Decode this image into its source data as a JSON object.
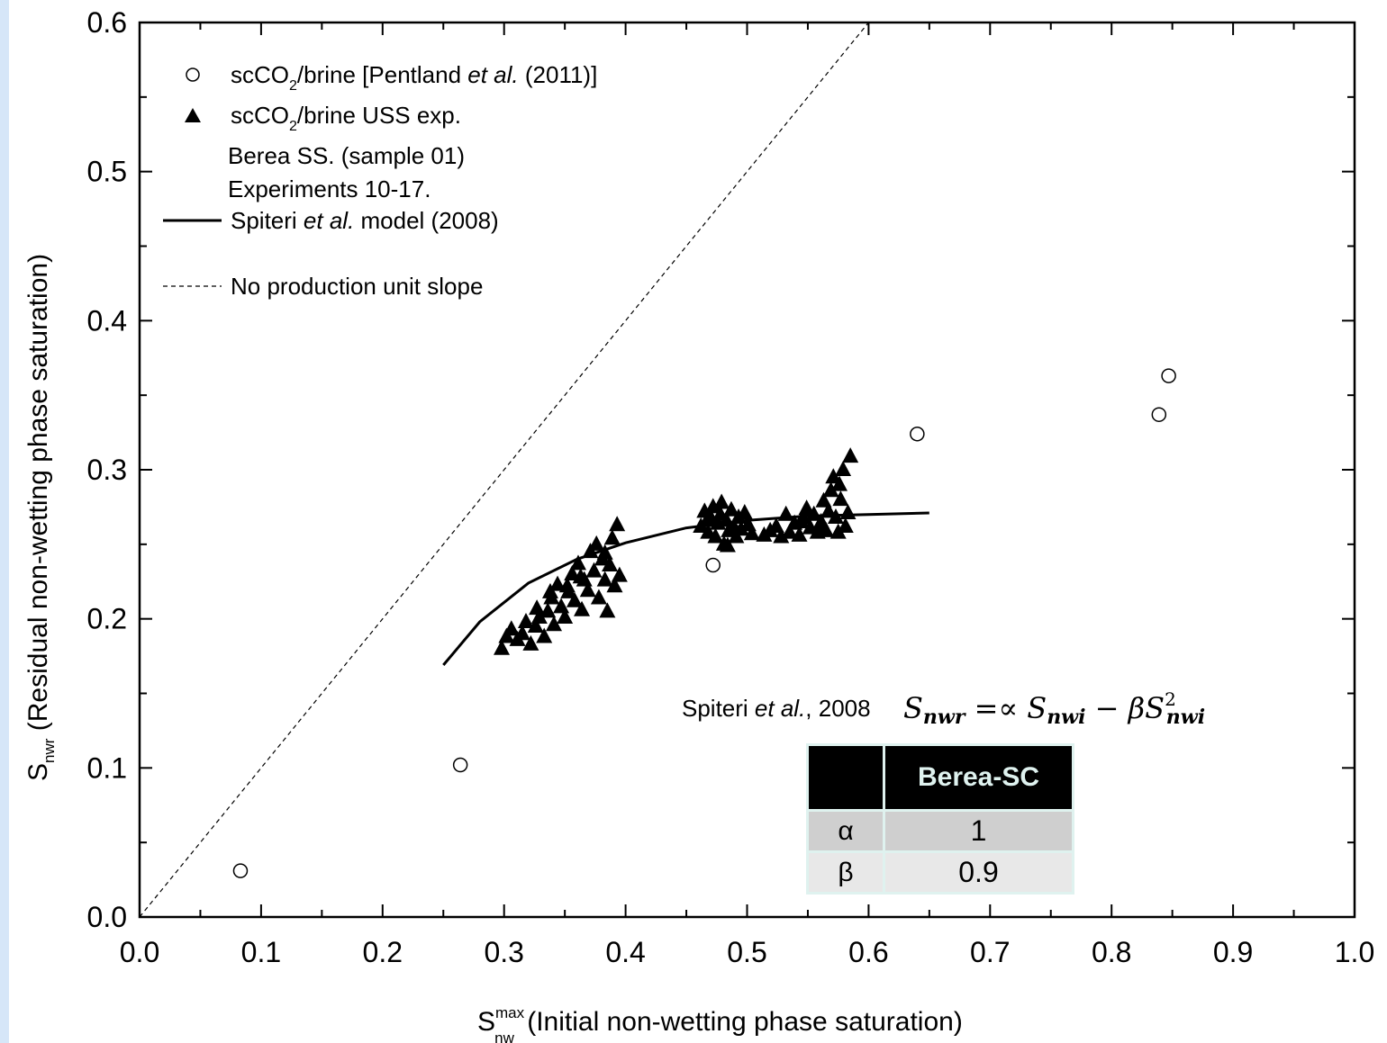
{
  "chart_data": {
    "type": "scatter",
    "xlim": [
      0.0,
      1.0
    ],
    "ylim": [
      0.0,
      0.6
    ],
    "x_ticks": [
      "0.0",
      "0.1",
      "0.2",
      "0.3",
      "0.4",
      "0.5",
      "0.6",
      "0.7",
      "0.8",
      "0.9",
      "1.0"
    ],
    "y_ticks": [
      "0.0",
      "0.1",
      "0.2",
      "0.3",
      "0.4",
      "0.5",
      "0.6"
    ],
    "xlabel": {
      "main": "S",
      "sup": "max",
      "sub": "nw",
      "rest": " (Initial non-wetting phase saturation)"
    },
    "ylabel": {
      "main": "S",
      "sub": "nwr",
      "rest": " (Residual non-wetting phase saturation)"
    },
    "grid": false,
    "legend": {
      "placement": "top-left",
      "pentland": {
        "pre": "scCO",
        "sub": "2",
        "mid": "/brine [Pentland ",
        "italic": "et al.",
        "post": " (2011)]"
      },
      "uss": {
        "pre": "scCO",
        "sub": "2",
        "post": "/brine USS exp."
      },
      "uss_note_1": "Berea SS. (sample 01)",
      "uss_note_2": "Experiments 10-17.",
      "model": {
        "pre": "Spiteri ",
        "italic": "et al.",
        "post": " model (2008)"
      },
      "unit_slope": "No production unit slope"
    },
    "series": [
      {
        "name": "scCO2/brine [Pentland et al. (2011)]",
        "marker": "open-circle",
        "points": [
          [
            0.083,
            0.031
          ],
          [
            0.264,
            0.102
          ],
          [
            0.472,
            0.236
          ],
          [
            0.64,
            0.324
          ],
          [
            0.839,
            0.337
          ],
          [
            0.847,
            0.363
          ]
        ]
      },
      {
        "name": "scCO2/brine USS exp.",
        "marker": "filled-triangle",
        "points": [
          [
            0.298,
            0.18
          ],
          [
            0.302,
            0.188
          ],
          [
            0.306,
            0.193
          ],
          [
            0.311,
            0.186
          ],
          [
            0.315,
            0.19
          ],
          [
            0.318,
            0.198
          ],
          [
            0.322,
            0.183
          ],
          [
            0.326,
            0.195
          ],
          [
            0.329,
            0.201
          ],
          [
            0.333,
            0.188
          ],
          [
            0.336,
            0.205
          ],
          [
            0.339,
            0.214
          ],
          [
            0.341,
            0.196
          ],
          [
            0.344,
            0.223
          ],
          [
            0.347,
            0.208
          ],
          [
            0.35,
            0.201
          ],
          [
            0.353,
            0.218
          ],
          [
            0.356,
            0.23
          ],
          [
            0.358,
            0.212
          ],
          [
            0.361,
            0.237
          ],
          [
            0.364,
            0.206
          ],
          [
            0.366,
            0.226
          ],
          [
            0.369,
            0.219
          ],
          [
            0.371,
            0.245
          ],
          [
            0.374,
            0.232
          ],
          [
            0.376,
            0.25
          ],
          [
            0.378,
            0.214
          ],
          [
            0.381,
            0.24
          ],
          [
            0.383,
            0.226
          ],
          [
            0.385,
            0.205
          ],
          [
            0.387,
            0.236
          ],
          [
            0.389,
            0.254
          ],
          [
            0.391,
            0.222
          ],
          [
            0.393,
            0.263
          ],
          [
            0.395,
            0.229
          ],
          [
            0.383,
            0.244
          ],
          [
            0.352,
            0.222
          ],
          [
            0.338,
            0.218
          ],
          [
            0.327,
            0.207
          ],
          [
            0.363,
            0.228
          ],
          [
            0.462,
            0.262
          ],
          [
            0.465,
            0.272
          ],
          [
            0.468,
            0.258
          ],
          [
            0.47,
            0.268
          ],
          [
            0.472,
            0.275
          ],
          [
            0.474,
            0.255
          ],
          [
            0.476,
            0.264
          ],
          [
            0.478,
            0.27
          ],
          [
            0.479,
            0.278
          ],
          [
            0.481,
            0.25
          ],
          [
            0.483,
            0.266
          ],
          [
            0.485,
            0.259
          ],
          [
            0.487,
            0.273
          ],
          [
            0.489,
            0.262
          ],
          [
            0.491,
            0.255
          ],
          [
            0.493,
            0.268
          ],
          [
            0.495,
            0.26
          ],
          [
            0.498,
            0.271
          ],
          [
            0.501,
            0.263
          ],
          [
            0.504,
            0.257
          ],
          [
            0.467,
            0.266
          ],
          [
            0.484,
            0.249
          ],
          [
            0.514,
            0.256
          ],
          [
            0.519,
            0.259
          ],
          [
            0.524,
            0.262
          ],
          [
            0.528,
            0.255
          ],
          [
            0.532,
            0.27
          ],
          [
            0.535,
            0.258
          ],
          [
            0.539,
            0.264
          ],
          [
            0.543,
            0.256
          ],
          [
            0.546,
            0.268
          ],
          [
            0.549,
            0.274
          ],
          [
            0.552,
            0.261
          ],
          [
            0.555,
            0.27
          ],
          [
            0.558,
            0.258
          ],
          [
            0.561,
            0.265
          ],
          [
            0.563,
            0.279
          ],
          [
            0.565,
            0.259
          ],
          [
            0.567,
            0.272
          ],
          [
            0.569,
            0.286
          ],
          [
            0.571,
            0.295
          ],
          [
            0.573,
            0.268
          ],
          [
            0.575,
            0.258
          ],
          [
            0.577,
            0.28
          ],
          [
            0.579,
            0.3
          ],
          [
            0.581,
            0.262
          ],
          [
            0.583,
            0.271
          ],
          [
            0.585,
            0.309
          ],
          [
            0.576,
            0.29
          ],
          [
            0.56,
            0.263
          ],
          [
            0.545,
            0.265
          ]
        ]
      },
      {
        "name": "Spiteri et al. model (2008)",
        "marker": "solid-line",
        "points": [
          [
            0.25,
            0.169
          ],
          [
            0.28,
            0.198
          ],
          [
            0.32,
            0.224
          ],
          [
            0.36,
            0.24
          ],
          [
            0.4,
            0.251
          ],
          [
            0.45,
            0.261
          ],
          [
            0.5,
            0.266
          ],
          [
            0.55,
            0.269
          ],
          [
            0.6,
            0.27
          ],
          [
            0.65,
            0.271
          ]
        ]
      },
      {
        "name": "No production unit slope",
        "marker": "dashed-line",
        "points": [
          [
            0.0,
            0.0
          ],
          [
            0.6,
            0.6
          ]
        ]
      }
    ],
    "annotation": {
      "prefix": {
        "pre": "Spiteri ",
        "italic": "et al.",
        "post": ", 2008"
      },
      "formula": {
        "lhs": "S",
        "lhs_sub": "nwr",
        "eq": " =∝ ",
        "t1": "S",
        "t1_sub": "nwi",
        "minus": " − ",
        "beta": "βS",
        "t2_sub": "nwi",
        "t2_sup": "2"
      }
    },
    "parameter_table": {
      "header": [
        "",
        "Berea-SC"
      ],
      "rows": [
        {
          "symbol": "α",
          "value": "1"
        },
        {
          "symbol": "β",
          "value": "0.9"
        }
      ]
    }
  }
}
